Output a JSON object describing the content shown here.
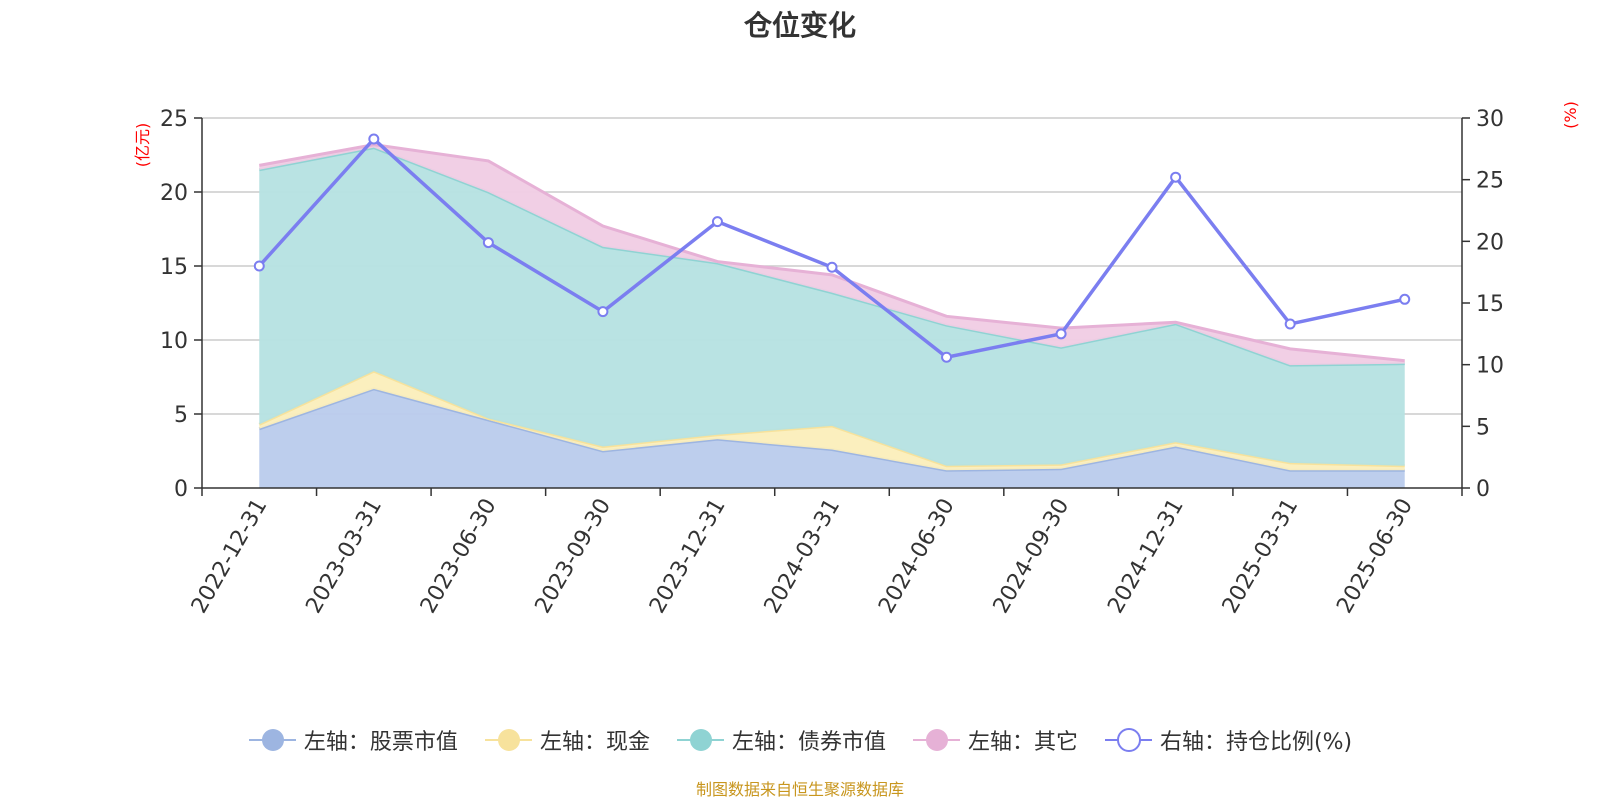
{
  "chart_data": {
    "type": "area",
    "title": "仓位变化",
    "left_axis": {
      "unit_label": "(亿元)",
      "ylim": [
        0,
        25
      ],
      "ticks": [
        0,
        5,
        10,
        15,
        20,
        25
      ]
    },
    "right_axis": {
      "unit_label": "(%)",
      "ylim": [
        0,
        30
      ],
      "ticks": [
        0,
        5,
        10,
        15,
        20,
        25,
        30
      ]
    },
    "categories": [
      "2022-12-31",
      "2023-03-31",
      "2023-06-30",
      "2023-09-30",
      "2023-12-31",
      "2024-03-31",
      "2024-06-30",
      "2024-09-30",
      "2024-12-31",
      "2025-03-31",
      "2025-06-30"
    ],
    "grid": true,
    "legend_position": "bottom",
    "stacked": true,
    "series": [
      {
        "name": "左轴：股票市值",
        "axis": "left",
        "kind": "area",
        "color": "#9db5e1",
        "fill": "#b9cbec",
        "values": [
          4.0,
          6.7,
          4.6,
          2.5,
          3.3,
          2.6,
          1.2,
          1.3,
          2.8,
          1.2,
          1.2
        ]
      },
      {
        "name": "左轴：现金",
        "axis": "left",
        "kind": "area",
        "color": "#f7e29c",
        "fill": "#fbeebb",
        "values": [
          0.3,
          1.2,
          0.1,
          0.3,
          0.3,
          1.6,
          0.3,
          0.3,
          0.3,
          0.5,
          0.3
        ]
      },
      {
        "name": "左轴：债券市值",
        "axis": "left",
        "kind": "area",
        "color": "#8fd3d3",
        "fill": "#b5e1e1",
        "values": [
          17.2,
          15.1,
          15.3,
          13.5,
          11.6,
          9.0,
          9.5,
          7.9,
          8.0,
          6.6,
          6.9
        ]
      },
      {
        "name": "左轴：其它",
        "axis": "left",
        "kind": "area",
        "color": "#e6b1d6",
        "fill": "#f0cce4",
        "values": [
          0.3,
          0.2,
          2.1,
          1.4,
          0.1,
          1.2,
          0.6,
          1.3,
          0.1,
          1.1,
          0.2
        ]
      },
      {
        "name": "右轴：持仓比例(%)",
        "axis": "right",
        "kind": "line",
        "color": "#7b7ef0",
        "values": [
          18.0,
          28.3,
          19.9,
          14.3,
          21.6,
          17.9,
          10.6,
          12.5,
          25.2,
          13.3,
          15.3
        ]
      }
    ]
  },
  "footer": {
    "source": "制图数据来自恒生聚源数据库"
  }
}
